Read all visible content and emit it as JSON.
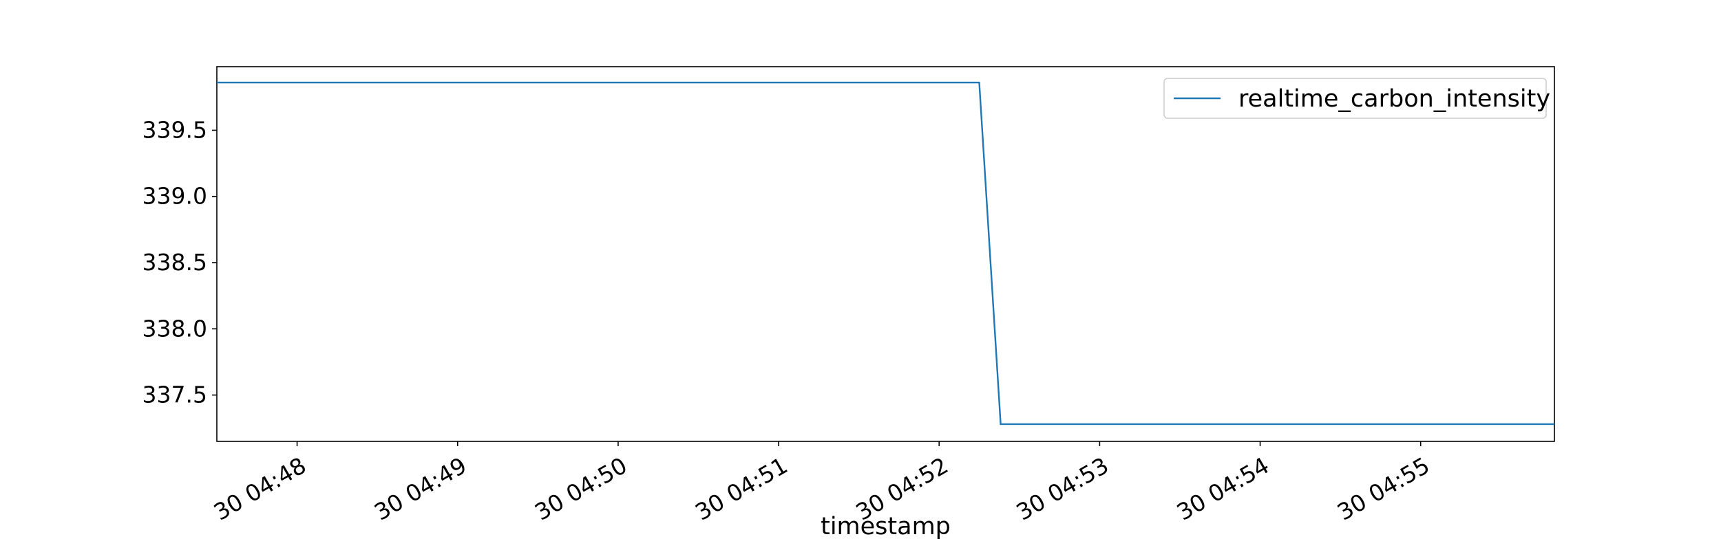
{
  "chart_data": {
    "type": "line",
    "title": "",
    "xlabel": "timestamp",
    "ylabel": "",
    "x_tick_labels": [
      "30 04:48",
      "30 04:49",
      "30 04:50",
      "30 04:51",
      "30 04:52",
      "30 04:53",
      "30 04:54",
      "30 04:55"
    ],
    "y_tick_labels": [
      "337.5",
      "338.0",
      "338.5",
      "339.0",
      "339.5"
    ],
    "y_ticks": [
      337.5,
      338.0,
      338.5,
      339.0,
      339.5
    ],
    "xlim": [
      "04:47:30",
      "04:55:50"
    ],
    "ylim": [
      337.15,
      339.98
    ],
    "grid": false,
    "legend_position": "top-right",
    "series": [
      {
        "name": "realtime_carbon_intensity",
        "color": "#1f77b4",
        "x": [
          "04:47:30",
          "04:52:15",
          "04:52:23",
          "04:55:50"
        ],
        "y": [
          339.86,
          339.86,
          337.28,
          337.28
        ]
      }
    ]
  }
}
